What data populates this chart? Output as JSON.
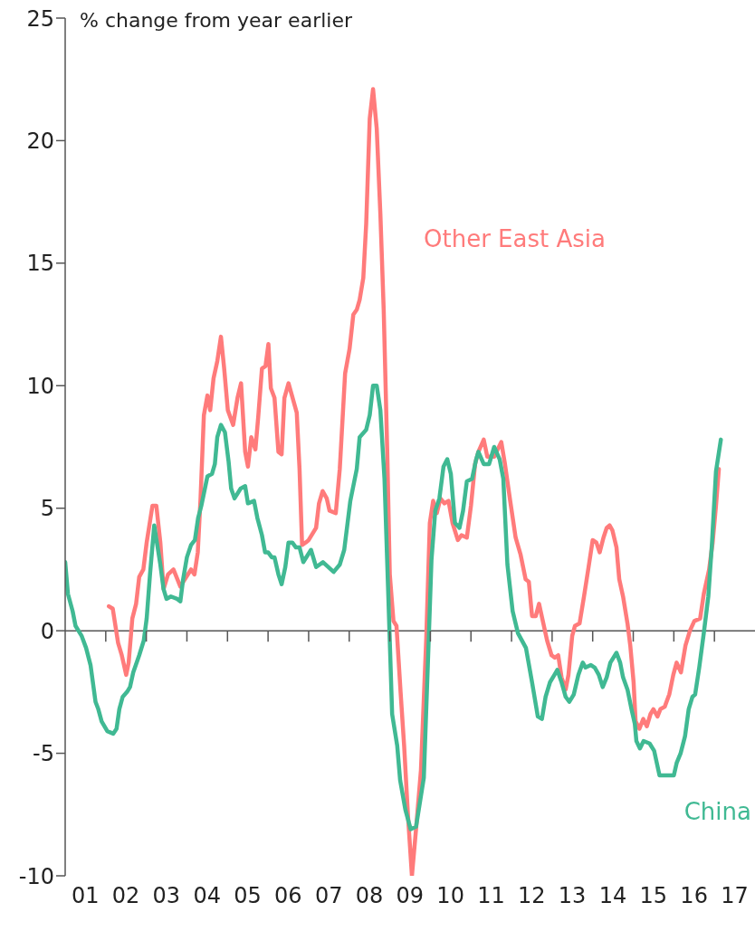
{
  "chart_data": {
    "type": "line",
    "ylabel": "% change from year earlier",
    "xlim": [
      "2001",
      "2018"
    ],
    "ylim": [
      -10,
      25
    ],
    "yticks": [
      -10,
      -5,
      0,
      5,
      10,
      15,
      20,
      25
    ],
    "xticks": [
      {
        "value": "2001-07",
        "label": "01"
      },
      {
        "value": "2002",
        "label": null
      },
      {
        "value": "2002-07",
        "label": "02"
      },
      {
        "value": "2003",
        "label": null
      },
      {
        "value": "2003-07",
        "label": "03"
      },
      {
        "value": "2004",
        "label": null
      },
      {
        "value": "2004-07",
        "label": "04"
      },
      {
        "value": "2005",
        "label": null
      },
      {
        "value": "2005-07",
        "label": "05"
      },
      {
        "value": "2006",
        "label": null
      },
      {
        "value": "2006-07",
        "label": "06"
      },
      {
        "value": "2007",
        "label": null
      },
      {
        "value": "2007-07",
        "label": "07"
      },
      {
        "value": "2008",
        "label": null
      },
      {
        "value": "2008-07",
        "label": "08"
      },
      {
        "value": "2009",
        "label": null
      },
      {
        "value": "2009-07",
        "label": "09"
      },
      {
        "value": "2010",
        "label": null
      },
      {
        "value": "2010-07",
        "label": "10"
      },
      {
        "value": "2011",
        "label": null
      },
      {
        "value": "2011-07",
        "label": "11"
      },
      {
        "value": "2012",
        "label": null
      },
      {
        "value": "2012-07",
        "label": "12"
      },
      {
        "value": "2013",
        "label": null
      },
      {
        "value": "2013-07",
        "label": "13"
      },
      {
        "value": "2014",
        "label": null
      },
      {
        "value": "2014-07",
        "label": "14"
      },
      {
        "value": "2015",
        "label": null
      },
      {
        "value": "2015-07",
        "label": "15"
      },
      {
        "value": "2016",
        "label": null
      },
      {
        "value": "2016-07",
        "label": "16"
      },
      {
        "value": "2017",
        "label": null
      },
      {
        "value": "2017-07",
        "label": "17"
      }
    ],
    "grid": false,
    "ref_lines": [
      {
        "axis": "y",
        "value": 0,
        "color": "#555555"
      }
    ],
    "legend": false,
    "marker": "none",
    "line_style": "solid",
    "series": [
      {
        "name": "Other East Asia",
        "color": "#ff7b7b",
        "x": [
          "2002-01-29",
          "2002-03-05",
          "2002-04-22",
          "2002-05-25",
          "2002-07-04",
          "2002-07-26",
          "2002-08-28",
          "2002-10-01",
          "2002-10-29",
          "2002-12-05",
          "2003-01-04",
          "2003-02-25",
          "2003-04-01",
          "2003-05-07",
          "2003-06-05",
          "2003-07-15",
          "2003-09-02",
          "2003-11-03",
          "2003-12-13",
          "2004-02-07",
          "2004-03-09",
          "2004-04-08",
          "2004-05-03",
          "2004-06-02",
          "2004-07-04",
          "2004-07-29",
          "2004-08-28",
          "2004-10-01",
          "2004-11-03",
          "2004-12-02",
          "2005-01-04",
          "2005-02-21",
          "2005-04-01",
          "2005-05-03",
          "2005-06-09",
          "2005-07-04",
          "2005-08-03",
          "2005-09-09",
          "2005-10-04",
          "2005-11-07",
          "2005-12-09",
          "2006-01-04",
          "2006-01-26",
          "2006-02-28",
          "2006-04-04",
          "2006-05-03",
          "2006-05-28",
          "2006-07-04",
          "2006-09-16",
          "2006-10-11",
          "2006-11-03",
          "2006-12-05",
          "2007-01-01",
          "2007-03-09",
          "2007-04-04",
          "2007-05-07",
          "2007-06-13",
          "2007-07-08",
          "2007-09-02",
          "2007-10-08",
          "2007-11-25",
          "2008-01-04",
          "2008-02-07",
          "2008-03-09",
          "2008-04-04",
          "2008-05-07",
          "2008-06-02",
          "2008-07-04",
          "2008-08-03",
          "2008-09-05",
          "2008-10-08",
          "2008-11-07",
          "2008-12-09",
          "2009-01-01",
          "2009-02-03",
          "2009-03-02",
          "2009-04-08",
          "2009-05-10",
          "2009-06-13",
          "2009-07-19",
          "2009-08-25",
          "2009-10-08",
          "2009-11-25",
          "2009-12-27",
          "2010-01-26",
          "2010-02-28",
          "2010-04-01",
          "2010-05-07",
          "2010-06-13",
          "2010-07-19",
          "2010-09-05",
          "2010-10-08",
          "2010-11-25",
          "2011-01-01",
          "2011-02-07",
          "2011-03-09",
          "2011-04-26",
          "2011-05-28",
          "2011-07-29",
          "2011-10-01",
          "2011-11-03",
          "2011-12-20",
          "2012-02-07",
          "2012-03-23",
          "2012-05-07",
          "2012-06-05",
          "2012-07-04",
          "2012-08-07",
          "2012-09-05",
          "2012-10-04",
          "2012-11-17",
          "2012-12-27",
          "2013-01-26",
          "2013-02-25",
          "2013-03-27",
          "2013-05-03",
          "2013-05-28",
          "2013-07-01",
          "2013-07-26",
          "2013-09-05",
          "2013-10-15",
          "2013-11-25",
          "2014-01-01",
          "2014-02-03",
          "2014-03-05",
          "2014-04-08",
          "2014-05-07",
          "2014-06-02",
          "2014-06-27",
          "2014-08-03",
          "2014-08-28",
          "2014-10-01",
          "2014-11-10",
          "2014-12-05",
          "2015-01-04",
          "2015-01-22",
          "2015-02-25",
          "2015-04-01",
          "2015-05-03",
          "2015-06-05",
          "2015-07-01",
          "2015-08-07",
          "2015-09-02",
          "2015-10-11",
          "2015-11-21",
          "2015-12-27",
          "2016-01-26",
          "2016-03-05",
          "2016-04-15",
          "2016-05-25",
          "2016-07-04",
          "2016-08-25",
          "2016-09-27",
          "2016-11-14",
          "2016-12-16",
          "2017-01-15",
          "2017-02-10"
        ],
        "values": [
          1.0,
          0.9,
          -0.5,
          -1.0,
          -1.8,
          -1.3,
          0.5,
          1.1,
          2.2,
          2.5,
          3.6,
          5.1,
          5.1,
          3.6,
          1.7,
          2.3,
          2.5,
          1.8,
          2.1,
          2.5,
          2.3,
          3.2,
          5.4,
          8.8,
          9.6,
          9.0,
          10.3,
          11.0,
          12.0,
          10.7,
          9.0,
          8.4,
          9.5,
          10.1,
          7.3,
          6.7,
          7.9,
          7.4,
          8.7,
          10.7,
          10.8,
          11.7,
          9.9,
          9.5,
          7.3,
          7.2,
          9.5,
          10.1,
          8.9,
          6.6,
          3.5,
          3.6,
          3.7,
          4.2,
          5.2,
          5.7,
          5.4,
          4.9,
          4.8,
          6.6,
          10.5,
          11.5,
          12.9,
          13.1,
          13.5,
          14.4,
          16.6,
          20.9,
          22.1,
          20.5,
          17.0,
          13.1,
          7.3,
          2.3,
          0.4,
          0.2,
          -2.5,
          -4.7,
          -7.5,
          -10.0,
          -8.1,
          -5.7,
          -0.3,
          4.4,
          5.3,
          4.8,
          5.4,
          5.2,
          5.3,
          4.4,
          3.7,
          3.9,
          3.8,
          5.1,
          6.8,
          7.3,
          7.8,
          7.1,
          7.1,
          7.7,
          6.8,
          5.3,
          3.8,
          3.1,
          2.1,
          2.0,
          0.6,
          0.6,
          1.1,
          0.5,
          -0.4,
          -1.0,
          -1.1,
          -1.0,
          -1.9,
          -2.4,
          -1.8,
          -0.2,
          0.2,
          0.3,
          1.4,
          2.6,
          3.7,
          3.6,
          3.2,
          3.8,
          4.2,
          4.3,
          4.1,
          3.4,
          2.1,
          1.4,
          0.3,
          -0.6,
          -2.1,
          -3.7,
          -4.0,
          -3.6,
          -3.9,
          -3.4,
          -3.2,
          -3.5,
          -3.2,
          -3.1,
          -2.6,
          -1.8,
          -1.3,
          -1.7,
          -0.6,
          0.0,
          0.4,
          0.5,
          1.5,
          2.5,
          3.6,
          5.1,
          6.6
        ]
      },
      {
        "name": "China",
        "color": "#40b993",
        "x": [
          "2001-01-01",
          "2001-01-26",
          "2001-03-09",
          "2001-04-04",
          "2001-05-28",
          "2001-07-08",
          "2001-08-17",
          "2001-10-01",
          "2001-10-26",
          "2001-11-25",
          "2002-01-15",
          "2002-03-09",
          "2002-04-08",
          "2002-05-03",
          "2002-06-02",
          "2002-07-11",
          "2002-08-07",
          "2002-09-05",
          "2002-10-29",
          "2002-12-09",
          "2003-01-04",
          "2003-02-03",
          "2003-03-13",
          "2003-05-07",
          "2003-06-05",
          "2003-07-01",
          "2003-08-10",
          "2003-10-04",
          "2003-11-03",
          "2003-11-28",
          "2004-01-01",
          "2004-02-07",
          "2004-03-13",
          "2004-04-11",
          "2004-05-10",
          "2004-07-04",
          "2004-08-14",
          "2004-09-09",
          "2004-10-01",
          "2004-11-03",
          "2004-12-09",
          "2005-01-11",
          "2005-02-03",
          "2005-03-05",
          "2005-04-29",
          "2005-06-09",
          "2005-07-04",
          "2005-08-28",
          "2005-09-27",
          "2005-11-07",
          "2005-12-05",
          "2006-01-01",
          "2006-02-03",
          "2006-02-28",
          "2006-04-04",
          "2006-05-03",
          "2006-06-05",
          "2006-07-04",
          "2006-08-07",
          "2006-09-09",
          "2006-10-11",
          "2006-11-14",
          "2007-01-22",
          "2007-03-09",
          "2007-05-10",
          "2007-08-14",
          "2007-10-08",
          "2007-11-17",
          "2008-01-11",
          "2008-03-09",
          "2008-04-04",
          "2008-06-02",
          "2008-07-04",
          "2008-08-03",
          "2008-09-05",
          "2008-10-08",
          "2008-11-14",
          "2008-12-16",
          "2009-01-22",
          "2009-03-09",
          "2009-04-04",
          "2009-05-21",
          "2009-07-08",
          "2009-08-25",
          "2009-11-03",
          "2009-12-09",
          "2010-01-11",
          "2010-02-14",
          "2010-03-23",
          "2010-04-29",
          "2010-06-02",
          "2010-07-04",
          "2010-08-10",
          "2010-09-20",
          "2010-10-22",
          "2010-11-25",
          "2011-01-11",
          "2011-02-17",
          "2011-03-09",
          "2011-04-26",
          "2011-06-13",
          "2011-07-29",
          "2011-09-16",
          "2011-10-19",
          "2011-11-25",
          "2012-01-11",
          "2012-02-28",
          "2012-05-10",
          "2012-07-04",
          "2012-08-25",
          "2012-10-01",
          "2012-11-03",
          "2012-12-13",
          "2013-01-22",
          "2013-02-17",
          "2013-03-27",
          "2013-05-03",
          "2013-06-05",
          "2013-07-15",
          "2013-08-25",
          "2013-10-04",
          "2013-10-29",
          "2013-12-16",
          "2014-01-19",
          "2014-02-25",
          "2014-04-01",
          "2014-05-07",
          "2014-06-09",
          "2014-08-03",
          "2014-09-05",
          "2014-10-01",
          "2014-11-10",
          "2014-12-16",
          "2015-01-15",
          "2015-01-29",
          "2015-03-02",
          "2015-04-04",
          "2015-05-28",
          "2015-07-08",
          "2015-08-25",
          "2015-10-11",
          "2016-01-01",
          "2016-01-26",
          "2016-03-02",
          "2016-04-11",
          "2016-05-14",
          "2016-06-16",
          "2016-07-11",
          "2016-08-17",
          "2016-09-27",
          "2016-11-07",
          "2016-12-09",
          "2017-01-15",
          "2017-02-28"
        ],
        "values": [
          2.8,
          1.5,
          0.8,
          0.2,
          -0.2,
          -0.7,
          -1.4,
          -2.9,
          -3.2,
          -3.7,
          -4.1,
          -4.2,
          -4.0,
          -3.2,
          -2.7,
          -2.5,
          -2.3,
          -1.7,
          -1.0,
          -0.4,
          0.5,
          2.3,
          4.3,
          2.7,
          1.7,
          1.3,
          1.4,
          1.3,
          1.2,
          2.1,
          3.0,
          3.5,
          3.7,
          4.6,
          5.1,
          6.3,
          6.4,
          6.8,
          7.9,
          8.4,
          8.1,
          6.9,
          5.8,
          5.4,
          5.8,
          5.9,
          5.2,
          5.3,
          4.6,
          3.9,
          3.2,
          3.2,
          3.0,
          3.0,
          2.3,
          1.9,
          2.6,
          3.6,
          3.6,
          3.4,
          3.4,
          2.8,
          3.3,
          2.6,
          2.8,
          2.4,
          2.7,
          3.3,
          5.3,
          6.6,
          7.9,
          8.2,
          8.8,
          10.0,
          10.0,
          9.0,
          6.2,
          1.8,
          -3.4,
          -4.7,
          -6.1,
          -7.3,
          -8.1,
          -8.0,
          -6.0,
          -1.4,
          2.9,
          4.9,
          5.4,
          6.7,
          7.0,
          6.4,
          4.4,
          4.2,
          4.9,
          6.1,
          6.2,
          7.0,
          7.3,
          6.8,
          6.8,
          7.5,
          7.0,
          6.2,
          2.7,
          0.8,
          -0.1,
          -0.7,
          -2.1,
          -3.5,
          -3.6,
          -2.7,
          -2.1,
          -1.8,
          -1.6,
          -2.1,
          -2.7,
          -2.9,
          -2.6,
          -1.8,
          -1.3,
          -1.5,
          -1.4,
          -1.5,
          -1.8,
          -2.3,
          -1.9,
          -1.3,
          -0.9,
          -1.3,
          -1.9,
          -2.4,
          -3.2,
          -3.8,
          -4.5,
          -4.8,
          -4.5,
          -4.6,
          -4.9,
          -5.9,
          -5.9,
          -5.9,
          -5.4,
          -5.0,
          -4.3,
          -3.2,
          -2.7,
          -2.6,
          -1.5,
          -0.1,
          1.4,
          3.5,
          6.5,
          7.8
        ]
      }
    ]
  }
}
